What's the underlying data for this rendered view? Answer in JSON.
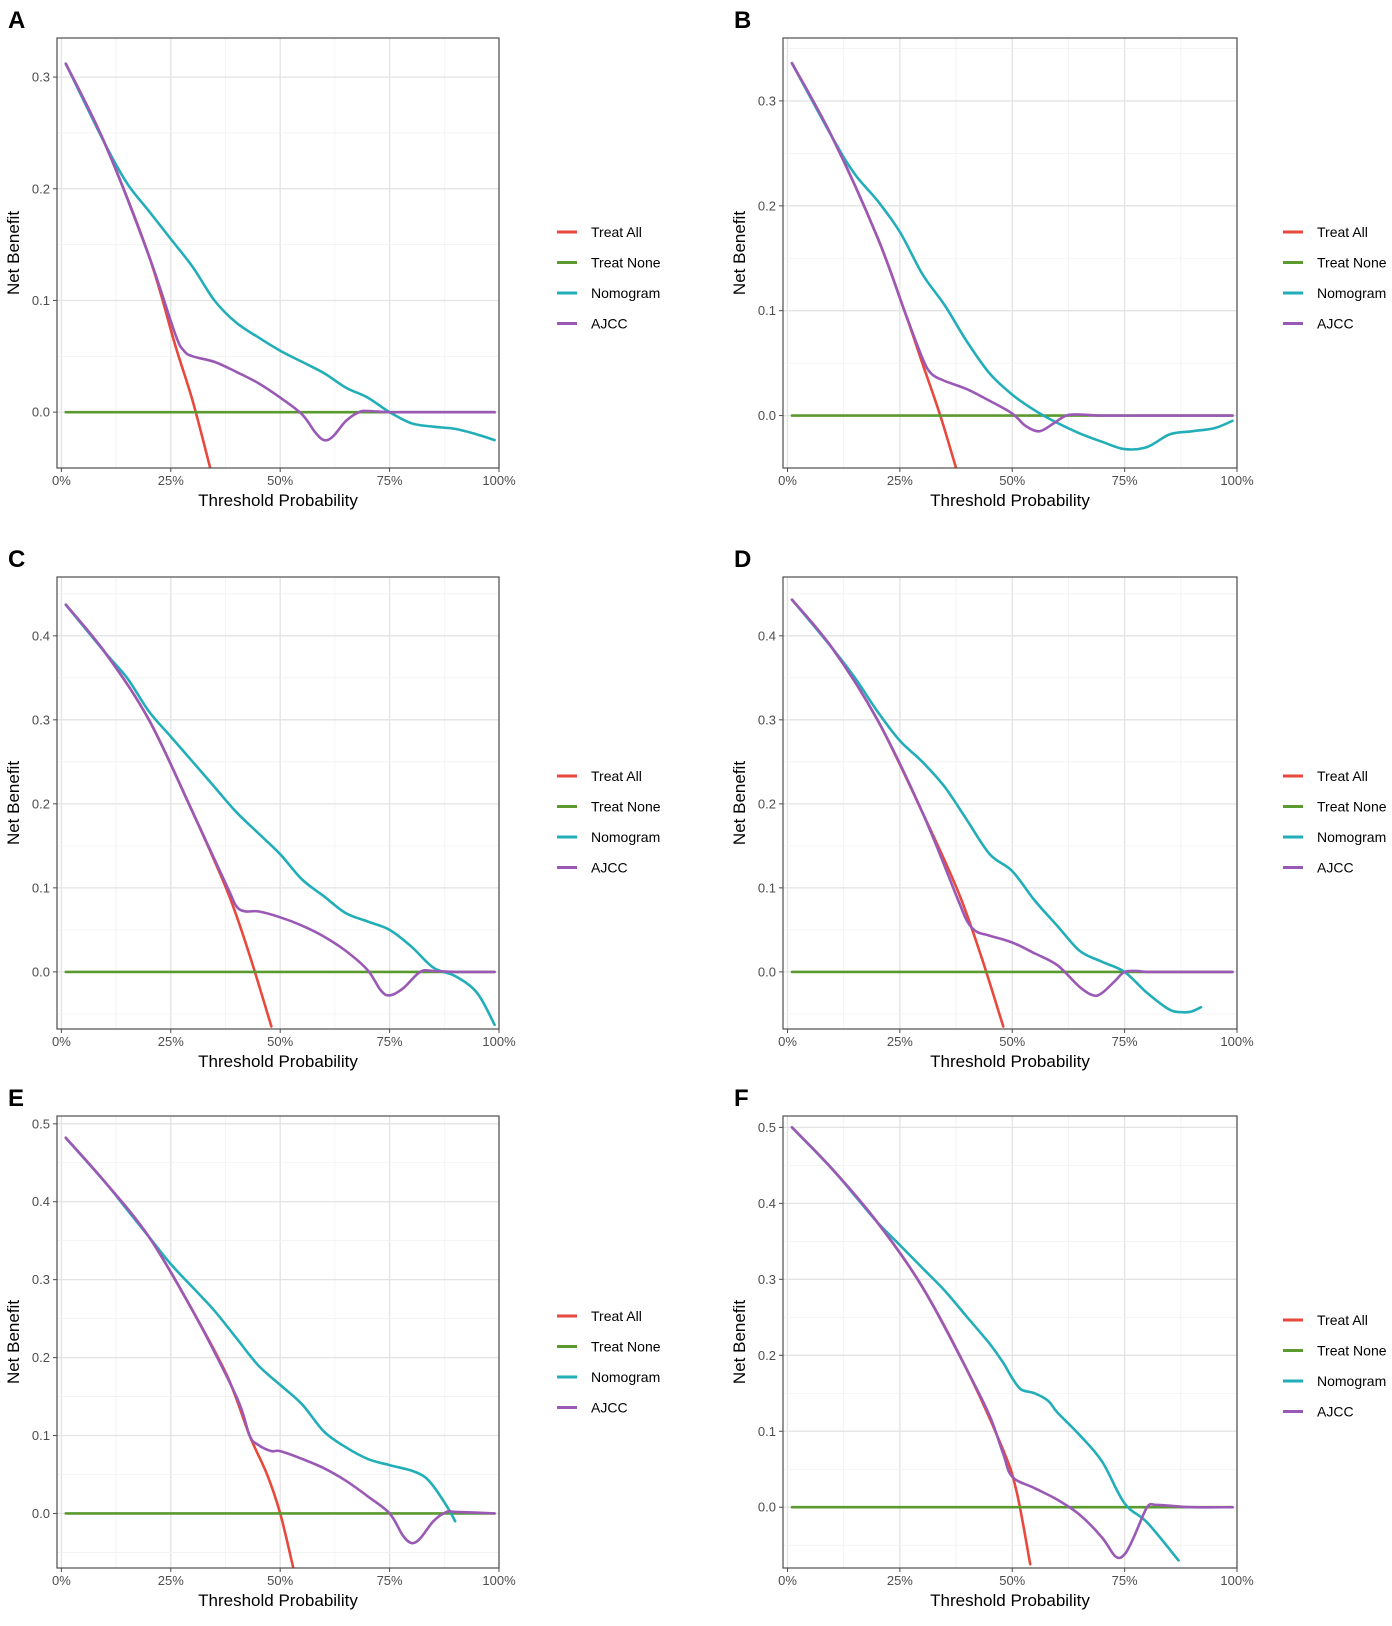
{
  "chart_data": [
    {
      "type": "line",
      "panel": "A",
      "xlabel": "Threshold Probability",
      "ylabel": "Net Benefit",
      "xlim": [
        -0.01,
        1.0
      ],
      "ylim": [
        -0.05,
        0.335
      ],
      "xticks": [
        0,
        0.25,
        0.5,
        0.75,
        1.0
      ],
      "xtick_labels": [
        "0%",
        "25%",
        "50%",
        "75%",
        "100%"
      ],
      "yticks": [
        0.0,
        0.1,
        0.2,
        0.3
      ],
      "ytick_labels": [
        "0.0",
        "0.1",
        "0.2",
        "0.3"
      ],
      "grid": true,
      "legend": [
        "Treat All",
        "Treat None",
        "Nomogram",
        "AJCC"
      ],
      "colors": {
        "Treat All": "#e8493e",
        "Treat None": "#5a9a2e",
        "Nomogram": "#22aeb8",
        "AJCC": "#9b59b6"
      },
      "series": [
        {
          "name": "Treat All",
          "x": [
            0.01,
            0.1,
            0.2,
            0.26,
            0.3,
            0.34
          ],
          "y": [
            0.312,
            0.24,
            0.14,
            0.06,
            0.01,
            -0.05
          ]
        },
        {
          "name": "Treat None",
          "x": [
            0.01,
            0.99
          ],
          "y": [
            0,
            0
          ]
        },
        {
          "name": "Nomogram",
          "x": [
            0.01,
            0.1,
            0.15,
            0.2,
            0.25,
            0.3,
            0.35,
            0.4,
            0.45,
            0.5,
            0.55,
            0.6,
            0.65,
            0.7,
            0.75,
            0.8,
            0.85,
            0.9,
            0.95,
            0.99
          ],
          "y": [
            0.312,
            0.24,
            0.205,
            0.18,
            0.155,
            0.13,
            0.1,
            0.08,
            0.067,
            0.055,
            0.045,
            0.035,
            0.022,
            0.013,
            0.0,
            -0.01,
            -0.013,
            -0.015,
            -0.02,
            -0.025
          ]
        },
        {
          "name": "AJCC",
          "x": [
            0.01,
            0.1,
            0.2,
            0.26,
            0.28,
            0.3,
            0.35,
            0.4,
            0.45,
            0.5,
            0.55,
            0.58,
            0.6,
            0.62,
            0.65,
            0.68,
            0.7,
            0.75,
            0.8,
            0.9,
            0.99
          ],
          "y": [
            0.312,
            0.24,
            0.14,
            0.07,
            0.055,
            0.05,
            0.045,
            0.036,
            0.026,
            0.013,
            -0.002,
            -0.018,
            -0.025,
            -0.022,
            -0.008,
            0.0,
            0.001,
            0.0,
            0.0,
            0.0,
            0.0
          ]
        }
      ]
    },
    {
      "type": "line",
      "panel": "B",
      "xlabel": "Threshold Probability",
      "ylabel": "Net Benefit",
      "xlim": [
        -0.01,
        1.0
      ],
      "ylim": [
        -0.05,
        0.36
      ],
      "xticks": [
        0,
        0.25,
        0.5,
        0.75,
        1.0
      ],
      "xtick_labels": [
        "0%",
        "25%",
        "50%",
        "75%",
        "100%"
      ],
      "yticks": [
        0.0,
        0.1,
        0.2,
        0.3
      ],
      "ytick_labels": [
        "0.0",
        "0.1",
        "0.2",
        "0.3"
      ],
      "grid": true,
      "legend": [
        "Treat All",
        "Treat None",
        "Nomogram",
        "AJCC"
      ],
      "colors": {
        "Treat All": "#e8493e",
        "Treat None": "#5a9a2e",
        "Nomogram": "#22aeb8",
        "AJCC": "#9b59b6"
      },
      "series": [
        {
          "name": "Treat All",
          "x": [
            0.01,
            0.1,
            0.2,
            0.26,
            0.3,
            0.34,
            0.375
          ],
          "y": [
            0.336,
            0.265,
            0.17,
            0.1,
            0.05,
            0.0,
            -0.05
          ]
        },
        {
          "name": "Treat None",
          "x": [
            0.01,
            0.99
          ],
          "y": [
            0,
            0
          ]
        },
        {
          "name": "Nomogram",
          "x": [
            0.01,
            0.1,
            0.15,
            0.2,
            0.25,
            0.3,
            0.35,
            0.4,
            0.45,
            0.5,
            0.55,
            0.6,
            0.65,
            0.7,
            0.75,
            0.8,
            0.85,
            0.9,
            0.95,
            0.99
          ],
          "y": [
            0.336,
            0.265,
            0.23,
            0.205,
            0.175,
            0.135,
            0.105,
            0.07,
            0.04,
            0.02,
            0.005,
            -0.007,
            -0.017,
            -0.025,
            -0.032,
            -0.03,
            -0.018,
            -0.015,
            -0.012,
            -0.005
          ]
        },
        {
          "name": "AJCC",
          "x": [
            0.01,
            0.1,
            0.2,
            0.26,
            0.3,
            0.32,
            0.35,
            0.4,
            0.45,
            0.5,
            0.53,
            0.56,
            0.59,
            0.62,
            0.65,
            0.7,
            0.8,
            0.9,
            0.99
          ],
          "y": [
            0.336,
            0.265,
            0.17,
            0.1,
            0.055,
            0.04,
            0.033,
            0.025,
            0.014,
            0.002,
            -0.01,
            -0.015,
            -0.008,
            0.0,
            0.001,
            0.0,
            0.0,
            0.0,
            0.0
          ]
        }
      ]
    },
    {
      "type": "line",
      "panel": "C",
      "xlabel": "Threshold Probability",
      "ylabel": "Net Benefit",
      "xlim": [
        -0.01,
        1.0
      ],
      "ylim": [
        -0.068,
        0.47
      ],
      "xticks": [
        0,
        0.25,
        0.5,
        0.75,
        1.0
      ],
      "xtick_labels": [
        "0%",
        "25%",
        "50%",
        "75%",
        "100%"
      ],
      "yticks": [
        0.0,
        0.1,
        0.2,
        0.3,
        0.4
      ],
      "ytick_labels": [
        "0.0",
        "0.1",
        "0.2",
        "0.3",
        "0.4"
      ],
      "grid": true,
      "legend": [
        "Treat All",
        "Treat None",
        "Nomogram",
        "AJCC"
      ],
      "colors": {
        "Treat All": "#e8493e",
        "Treat None": "#5a9a2e",
        "Nomogram": "#22aeb8",
        "AJCC": "#9b59b6"
      },
      "series": [
        {
          "name": "Treat All",
          "x": [
            0.01,
            0.1,
            0.2,
            0.3,
            0.38,
            0.43,
            0.48
          ],
          "y": [
            0.437,
            0.38,
            0.3,
            0.19,
            0.095,
            0.02,
            -0.065
          ]
        },
        {
          "name": "Treat None",
          "x": [
            0.01,
            0.99
          ],
          "y": [
            0,
            0
          ]
        },
        {
          "name": "Nomogram",
          "x": [
            0.01,
            0.1,
            0.15,
            0.2,
            0.25,
            0.3,
            0.35,
            0.4,
            0.45,
            0.5,
            0.55,
            0.6,
            0.65,
            0.7,
            0.75,
            0.8,
            0.85,
            0.9,
            0.95,
            0.99
          ],
          "y": [
            0.437,
            0.38,
            0.35,
            0.31,
            0.28,
            0.25,
            0.22,
            0.19,
            0.165,
            0.14,
            0.11,
            0.09,
            0.07,
            0.06,
            0.05,
            0.03,
            0.005,
            -0.005,
            -0.025,
            -0.063
          ]
        },
        {
          "name": "AJCC",
          "x": [
            0.01,
            0.1,
            0.2,
            0.3,
            0.38,
            0.4,
            0.42,
            0.45,
            0.5,
            0.55,
            0.6,
            0.65,
            0.7,
            0.73,
            0.75,
            0.78,
            0.82,
            0.85,
            0.9,
            0.99
          ],
          "y": [
            0.437,
            0.38,
            0.3,
            0.19,
            0.1,
            0.078,
            0.072,
            0.072,
            0.065,
            0.055,
            0.042,
            0.025,
            0.002,
            -0.022,
            -0.028,
            -0.02,
            0.0,
            0.001,
            0.0,
            0.0
          ]
        }
      ]
    },
    {
      "type": "line",
      "panel": "D",
      "xlabel": "Threshold Probability",
      "ylabel": "Net Benefit",
      "xlim": [
        -0.01,
        1.0
      ],
      "ylim": [
        -0.068,
        0.47
      ],
      "xticks": [
        0,
        0.25,
        0.5,
        0.75,
        1.0
      ],
      "xtick_labels": [
        "0%",
        "25%",
        "50%",
        "75%",
        "100%"
      ],
      "yticks": [
        0.0,
        0.1,
        0.2,
        0.3,
        0.4
      ],
      "ytick_labels": [
        "0.0",
        "0.1",
        "0.2",
        "0.3",
        "0.4"
      ],
      "grid": true,
      "legend": [
        "Treat All",
        "Treat None",
        "Nomogram",
        "AJCC"
      ],
      "colors": {
        "Treat All": "#e8493e",
        "Treat None": "#5a9a2e",
        "Nomogram": "#22aeb8",
        "AJCC": "#9b59b6"
      },
      "series": [
        {
          "name": "Treat All",
          "x": [
            0.01,
            0.1,
            0.2,
            0.3,
            0.38,
            0.43,
            0.48
          ],
          "y": [
            0.443,
            0.385,
            0.3,
            0.19,
            0.095,
            0.02,
            -0.065
          ]
        },
        {
          "name": "Treat None",
          "x": [
            0.01,
            0.99
          ],
          "y": [
            0,
            0
          ]
        },
        {
          "name": "Nomogram",
          "x": [
            0.01,
            0.1,
            0.15,
            0.2,
            0.25,
            0.3,
            0.35,
            0.4,
            0.45,
            0.5,
            0.55,
            0.6,
            0.65,
            0.7,
            0.75,
            0.8,
            0.85,
            0.88,
            0.9,
            0.92
          ],
          "y": [
            0.443,
            0.385,
            0.35,
            0.31,
            0.275,
            0.25,
            0.22,
            0.18,
            0.14,
            0.12,
            0.085,
            0.055,
            0.025,
            0.012,
            0.0,
            -0.025,
            -0.045,
            -0.048,
            -0.047,
            -0.042
          ]
        },
        {
          "name": "AJCC",
          "x": [
            0.01,
            0.1,
            0.2,
            0.3,
            0.38,
            0.4,
            0.42,
            0.45,
            0.5,
            0.55,
            0.6,
            0.65,
            0.68,
            0.7,
            0.73,
            0.75,
            0.78,
            0.8,
            0.9,
            0.99
          ],
          "y": [
            0.443,
            0.385,
            0.3,
            0.19,
            0.085,
            0.06,
            0.048,
            0.043,
            0.035,
            0.022,
            0.008,
            -0.018,
            -0.028,
            -0.025,
            -0.01,
            0.0,
            0.001,
            0.0,
            0.0,
            0.0
          ]
        }
      ]
    },
    {
      "type": "line",
      "panel": "E",
      "xlabel": "Threshold Probability",
      "ylabel": "Net Benefit",
      "xlim": [
        -0.01,
        1.0
      ],
      "ylim": [
        -0.07,
        0.51
      ],
      "xticks": [
        0,
        0.25,
        0.5,
        0.75,
        1.0
      ],
      "xtick_labels": [
        "0%",
        "25%",
        "50%",
        "75%",
        "100%"
      ],
      "yticks": [
        0.0,
        0.1,
        0.2,
        0.3,
        0.4,
        0.5
      ],
      "ytick_labels": [
        "0.0",
        "0.1",
        "0.2",
        "0.3",
        "0.4",
        "0.5"
      ],
      "grid": true,
      "legend": [
        "Treat All",
        "Treat None",
        "Nomogram",
        "AJCC"
      ],
      "colors": {
        "Treat All": "#e8493e",
        "Treat None": "#5a9a2e",
        "Nomogram": "#22aeb8",
        "AJCC": "#9b59b6"
      },
      "series": [
        {
          "name": "Treat All",
          "x": [
            0.01,
            0.1,
            0.2,
            0.3,
            0.38,
            0.43,
            0.47,
            0.5,
            0.53
          ],
          "y": [
            0.482,
            0.425,
            0.355,
            0.26,
            0.175,
            0.1,
            0.05,
            0.0,
            -0.07
          ]
        },
        {
          "name": "Treat None",
          "x": [
            0.01,
            0.99
          ],
          "y": [
            0,
            0
          ]
        },
        {
          "name": "Nomogram",
          "x": [
            0.01,
            0.1,
            0.15,
            0.2,
            0.25,
            0.3,
            0.35,
            0.4,
            0.45,
            0.5,
            0.55,
            0.6,
            0.65,
            0.7,
            0.75,
            0.8,
            0.83,
            0.85,
            0.88,
            0.9
          ],
          "y": [
            0.482,
            0.425,
            0.39,
            0.355,
            0.32,
            0.29,
            0.26,
            0.225,
            0.19,
            0.165,
            0.14,
            0.105,
            0.085,
            0.07,
            0.062,
            0.055,
            0.047,
            0.035,
            0.01,
            -0.01
          ]
        },
        {
          "name": "AJCC",
          "x": [
            0.01,
            0.1,
            0.2,
            0.3,
            0.4,
            0.43,
            0.45,
            0.48,
            0.5,
            0.55,
            0.6,
            0.65,
            0.7,
            0.75,
            0.78,
            0.8,
            0.82,
            0.85,
            0.88,
            0.9,
            0.99
          ],
          "y": [
            0.482,
            0.425,
            0.355,
            0.26,
            0.15,
            0.1,
            0.088,
            0.08,
            0.08,
            0.07,
            0.058,
            0.042,
            0.022,
            0.0,
            -0.028,
            -0.038,
            -0.032,
            -0.01,
            0.002,
            0.002,
            0.0
          ]
        }
      ]
    },
    {
      "type": "line",
      "panel": "F",
      "xlabel": "Threshold Probability",
      "ylabel": "Net Benefit",
      "xlim": [
        -0.01,
        1.0
      ],
      "ylim": [
        -0.08,
        0.515
      ],
      "xticks": [
        0,
        0.25,
        0.5,
        0.75,
        1.0
      ],
      "xtick_labels": [
        "0%",
        "25%",
        "50%",
        "75%",
        "100%"
      ],
      "yticks": [
        0.0,
        0.1,
        0.2,
        0.3,
        0.4,
        0.5
      ],
      "ytick_labels": [
        "0.0",
        "0.1",
        "0.2",
        "0.3",
        "0.4",
        "0.5"
      ],
      "grid": true,
      "legend": [
        "Treat All",
        "Treat None",
        "Nomogram",
        "AJCC"
      ],
      "colors": {
        "Treat All": "#e8493e",
        "Treat None": "#5a9a2e",
        "Nomogram": "#22aeb8",
        "AJCC": "#9b59b6"
      },
      "series": [
        {
          "name": "Treat All",
          "x": [
            0.01,
            0.1,
            0.2,
            0.3,
            0.4,
            0.48,
            0.51,
            0.54
          ],
          "y": [
            0.5,
            0.445,
            0.375,
            0.29,
            0.18,
            0.075,
            0.02,
            -0.075
          ]
        },
        {
          "name": "Treat None",
          "x": [
            0.01,
            0.99
          ],
          "y": [
            0,
            0
          ]
        },
        {
          "name": "Nomogram",
          "x": [
            0.01,
            0.1,
            0.15,
            0.2,
            0.25,
            0.3,
            0.35,
            0.4,
            0.45,
            0.48,
            0.5,
            0.52,
            0.55,
            0.58,
            0.6,
            0.65,
            0.7,
            0.75,
            0.8,
            0.87
          ],
          "y": [
            0.5,
            0.445,
            0.41,
            0.375,
            0.345,
            0.315,
            0.285,
            0.25,
            0.215,
            0.19,
            0.17,
            0.155,
            0.15,
            0.14,
            0.125,
            0.095,
            0.06,
            0.005,
            -0.02,
            -0.07
          ]
        },
        {
          "name": "AJCC",
          "x": [
            0.01,
            0.1,
            0.2,
            0.3,
            0.4,
            0.45,
            0.48,
            0.5,
            0.55,
            0.6,
            0.65,
            0.7,
            0.73,
            0.75,
            0.77,
            0.8,
            0.82,
            0.85,
            0.9,
            0.99
          ],
          "y": [
            0.5,
            0.445,
            0.375,
            0.29,
            0.18,
            0.12,
            0.07,
            0.04,
            0.025,
            0.01,
            -0.01,
            -0.04,
            -0.065,
            -0.062,
            -0.04,
            0.0,
            0.003,
            0.002,
            0.0,
            0.0
          ]
        }
      ]
    }
  ]
}
